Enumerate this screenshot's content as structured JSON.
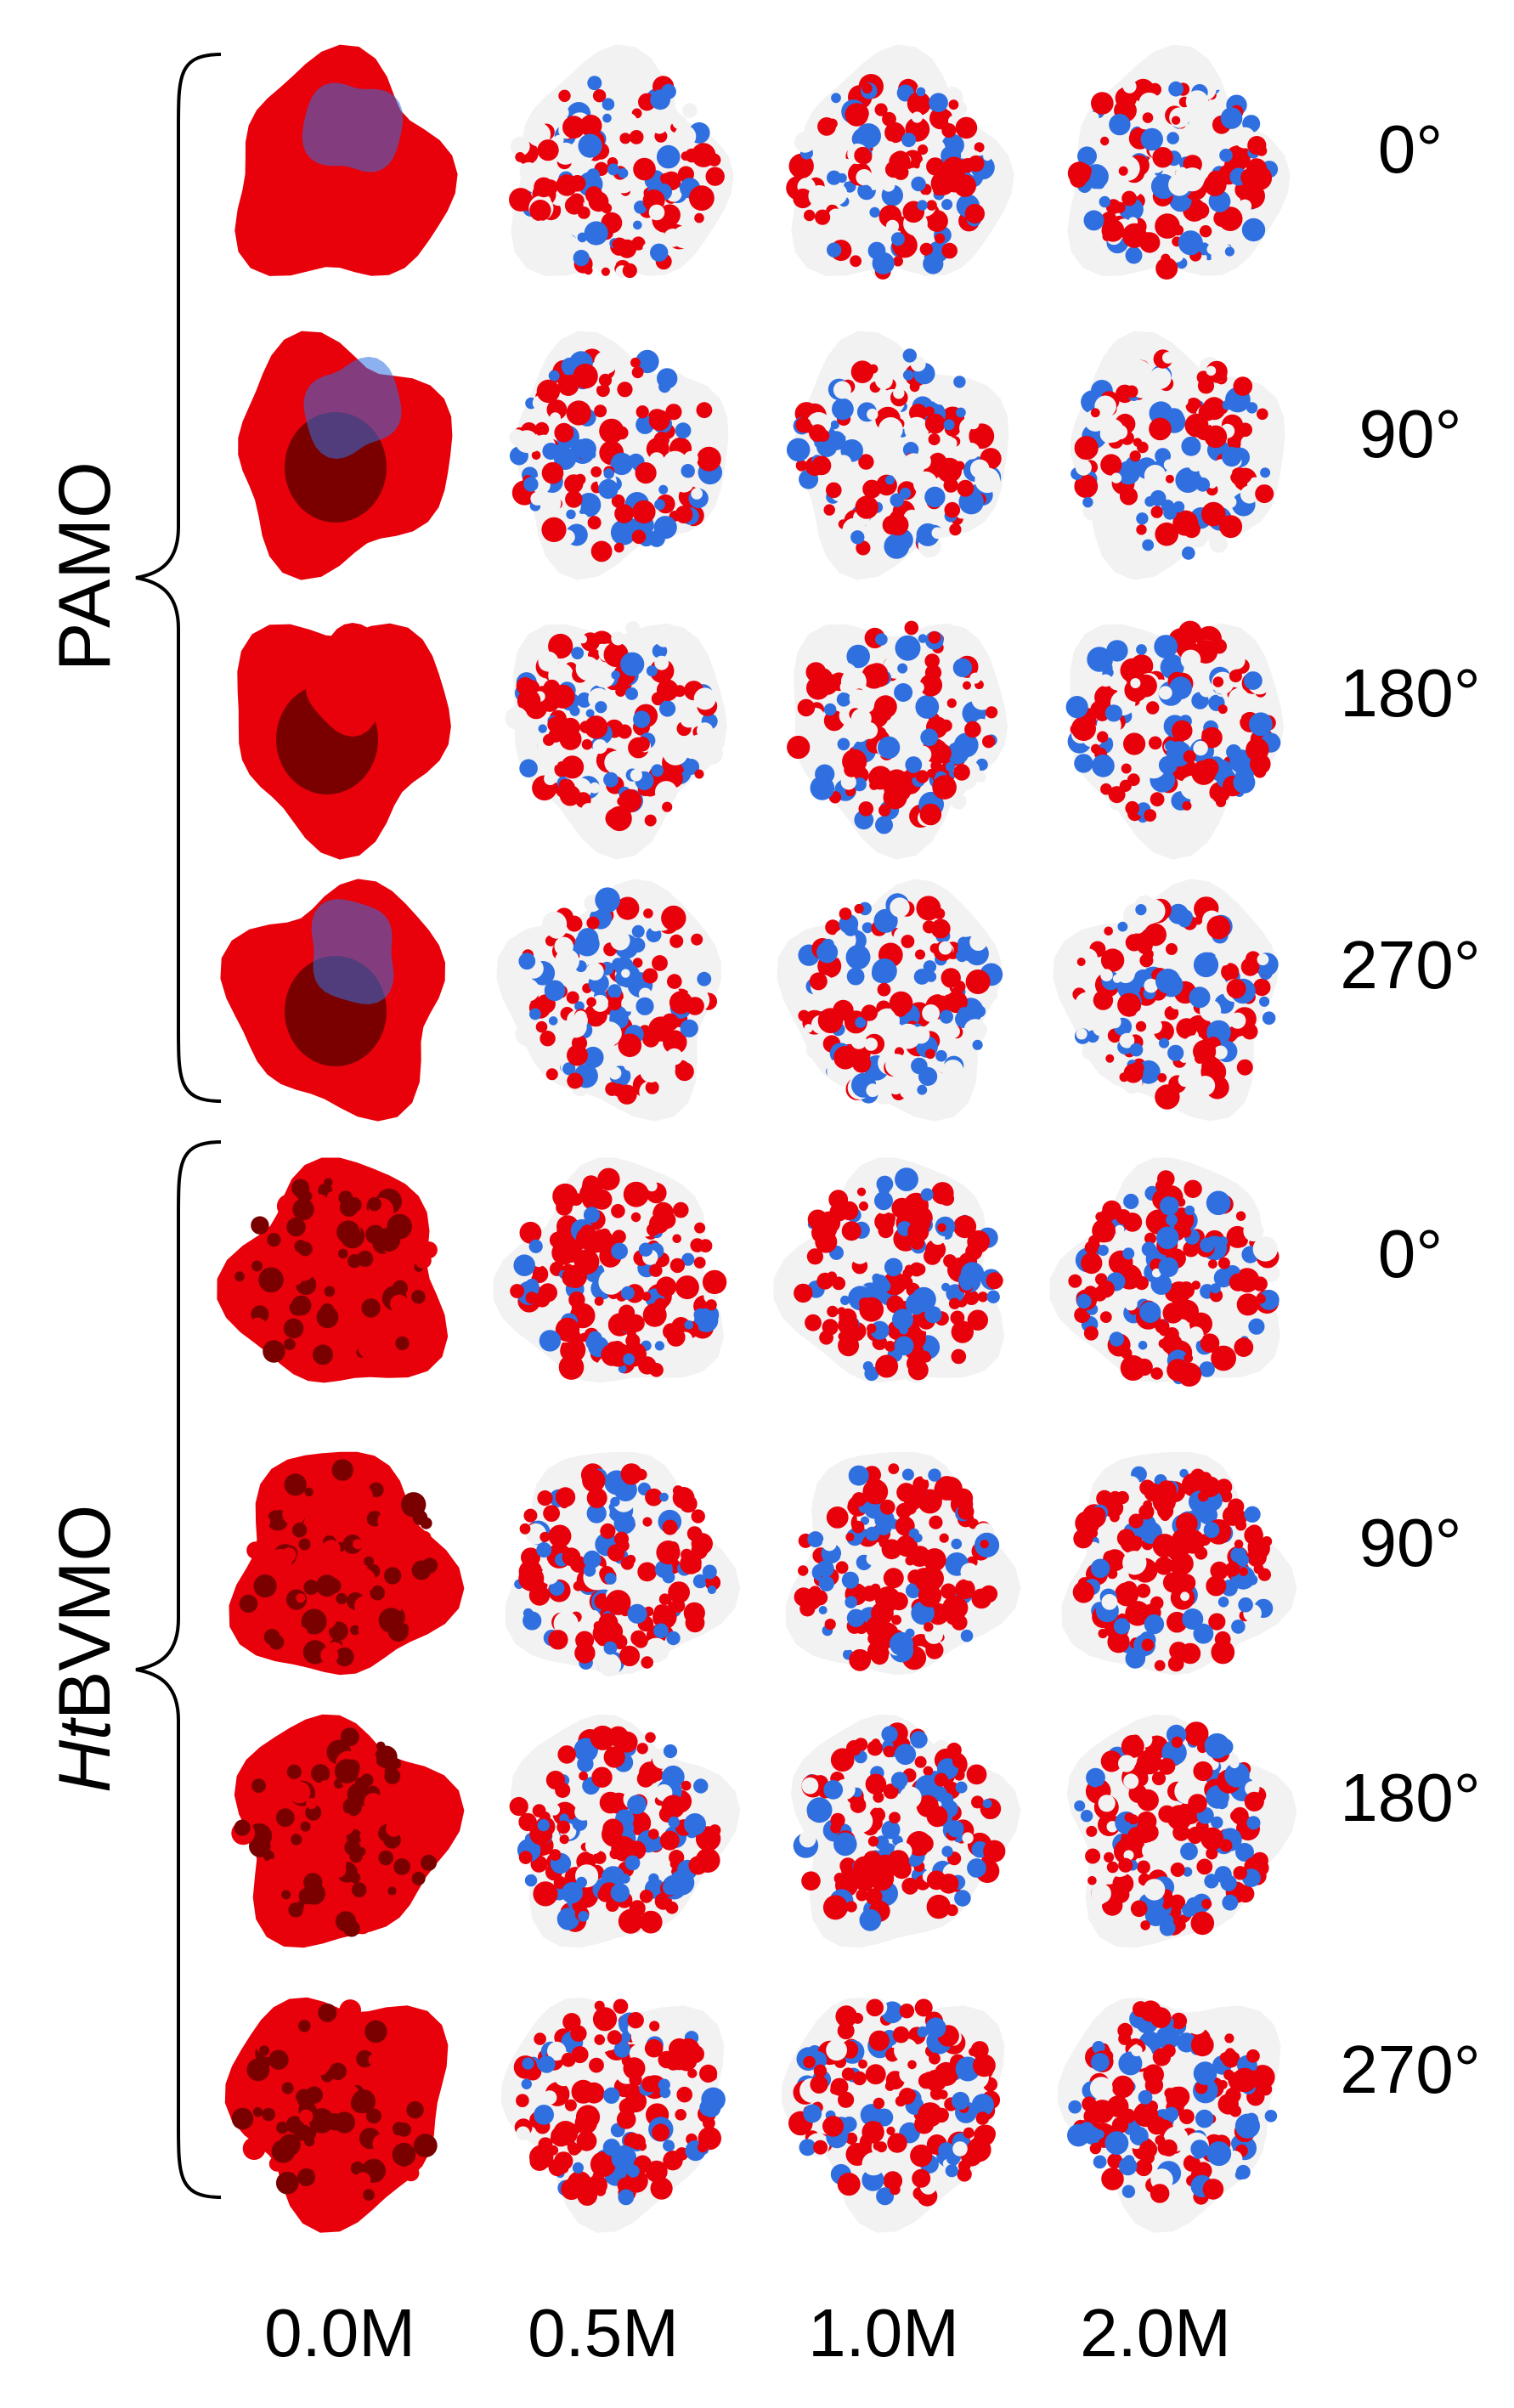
{
  "groups": [
    {
      "id": "pamo",
      "label": "PAMO",
      "label_prefix_italic": "",
      "label_suffix": "PAMO"
    },
    {
      "id": "htbvmo",
      "label": "HtBVMO",
      "label_prefix_italic": "Ht",
      "label_suffix": "BVMO"
    }
  ],
  "angles": [
    "0°",
    "90°",
    "180°",
    "270°"
  ],
  "concentrations": [
    "0.0M",
    "0.5M",
    "1.0M",
    "2.0M"
  ],
  "colors": {
    "negative": "#e8000b",
    "positive": "#2f6fe0",
    "neutral": "#f2f2f2",
    "dark_red": "#7a0000"
  }
}
